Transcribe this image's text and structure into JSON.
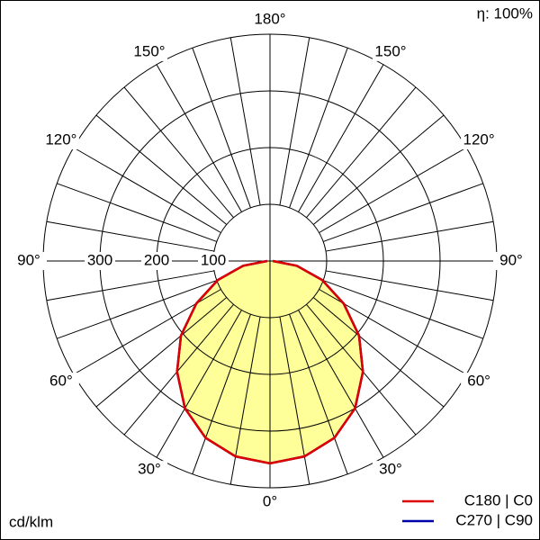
{
  "chart_data": {
    "type": "polar",
    "annotation": "η: 100%",
    "unit_label": "cd/klm",
    "angles": [
      -90,
      -80,
      -70,
      -60,
      -50,
      -40,
      -30,
      -20,
      -10,
      0,
      10,
      20,
      30,
      40,
      50,
      60,
      70,
      80,
      90
    ],
    "series": [
      {
        "name": "C270 | C90",
        "color": "#0000aa",
        "values": [
          5,
          48,
          98,
          150,
          205,
          255,
          300,
          332,
          350,
          357,
          350,
          332,
          300,
          255,
          205,
          150,
          98,
          48,
          5
        ]
      },
      {
        "name": "C180 | C0",
        "color": "#dd0000",
        "values": [
          5,
          48,
          98,
          150,
          205,
          255,
          300,
          332,
          350,
          357,
          350,
          332,
          300,
          255,
          205,
          150,
          98,
          48,
          5
        ]
      }
    ],
    "fill_color": "#ffff99",
    "rlim": [
      0,
      400
    ],
    "rticks": [
      100,
      200,
      300
    ],
    "angle_ticks": [
      {
        "value": 180,
        "label": "180°"
      },
      {
        "value": -150,
        "label": "150°"
      },
      {
        "value": 150,
        "label": "150°"
      },
      {
        "value": -120,
        "label": "120°"
      },
      {
        "value": 120,
        "label": "120°"
      },
      {
        "value": -90,
        "label": "90°"
      },
      {
        "value": 90,
        "label": "90°"
      },
      {
        "value": -60,
        "label": "60°"
      },
      {
        "value": 60,
        "label": "60°"
      },
      {
        "value": -30,
        "label": "30°"
      },
      {
        "value": 30,
        "label": "30°"
      },
      {
        "value": 0,
        "label": "0°"
      }
    ],
    "grid": true
  }
}
